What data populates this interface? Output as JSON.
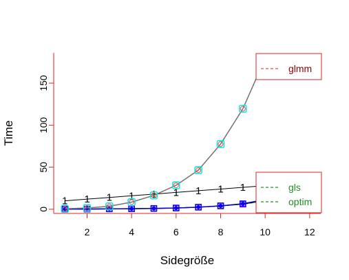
{
  "chart_data": {
    "type": "line",
    "title": "",
    "xlabel": "Sidegröße",
    "ylabel": "Time",
    "xlim": [
      0.5,
      12.5
    ],
    "ylim": [
      -5,
      186
    ],
    "xticks": [
      2,
      4,
      6,
      8,
      10,
      12
    ],
    "yticks": [
      0,
      50,
      100,
      150
    ],
    "x": [
      1,
      2,
      3,
      4,
      5,
      6,
      7,
      8,
      9,
      10
    ],
    "series": [
      {
        "name": "glmm",
        "values": [
          0.5,
          1.5,
          3.5,
          8.5,
          16.5,
          28.5,
          46.5,
          77.5,
          119.5,
          179.5
        ],
        "color": "#E74C3C",
        "overlay_color": "#2E8B8B",
        "marker_color": "#00E5EE",
        "legend_text_color": "#8B0000"
      },
      {
        "name": "gls",
        "values": [
          0.0,
          0.2,
          0.5,
          0.7,
          1.0,
          1.5,
          2.5,
          4.0,
          6.0,
          10.0
        ],
        "color": "#228B22",
        "marker_color": "#FF00FF",
        "legend_text_color": "#228B22"
      },
      {
        "name": "optim",
        "values": [
          0.0,
          0.2,
          0.4,
          0.6,
          0.9,
          1.4,
          2.4,
          4.0,
          6.5,
          11.5
        ],
        "color": "#228B22",
        "marker_color": "#0000FF",
        "legend_text_color": "#228B22"
      },
      {
        "values": [
          10.0,
          12.0,
          14.0,
          16.0,
          18.0,
          20.0,
          22.0,
          24.0,
          26.0,
          28.0
        ],
        "color": "#000000",
        "marker_label": "1"
      }
    ],
    "grid": false,
    "legend_placement": [
      "top-right",
      "lower-right"
    ],
    "frame_color": "#E02020"
  }
}
